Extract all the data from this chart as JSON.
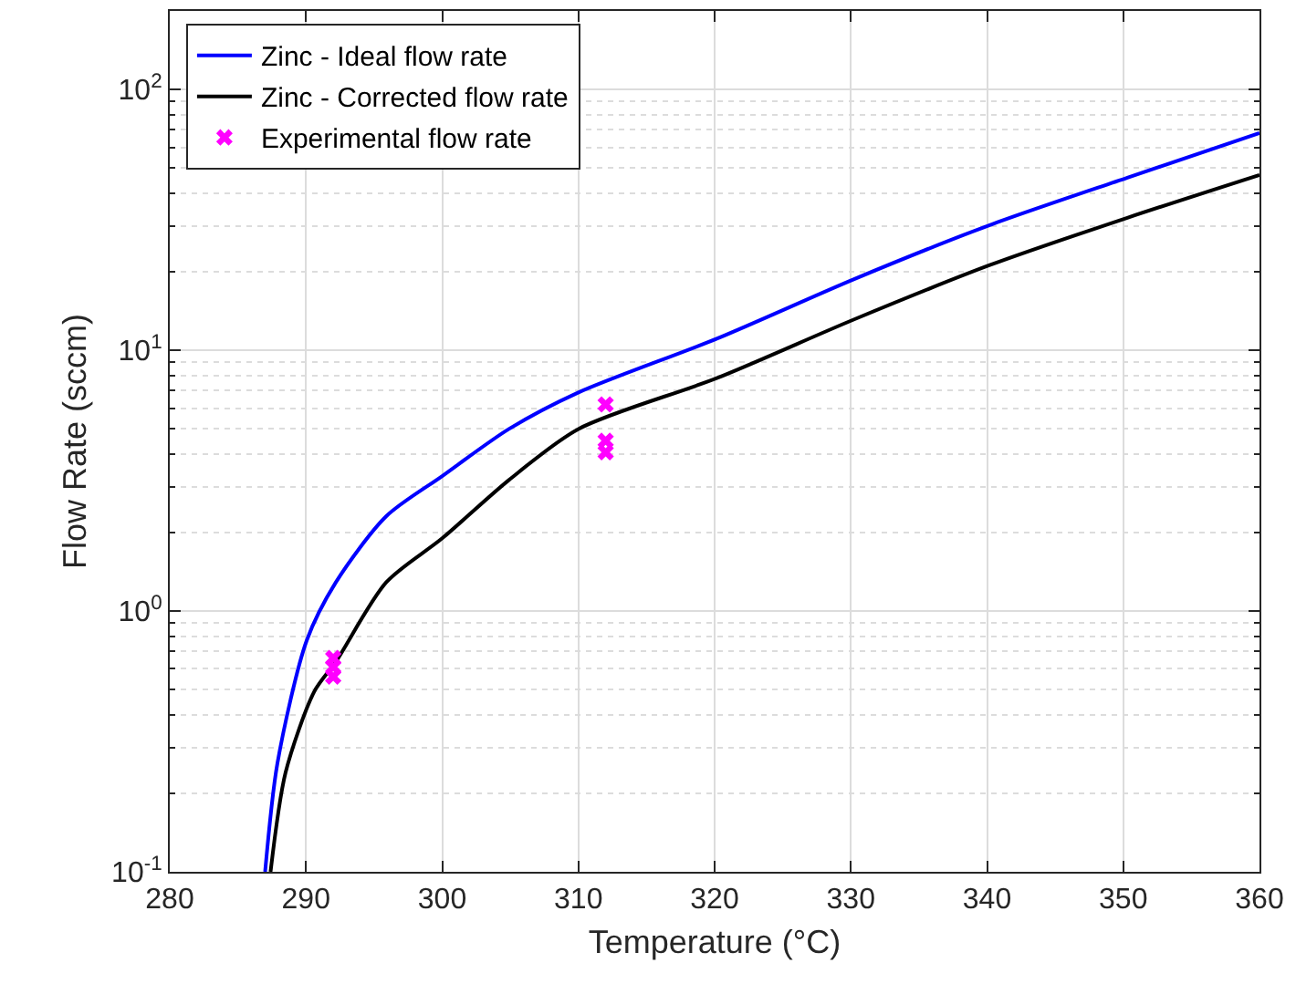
{
  "chart_data": {
    "type": "line",
    "xlabel": "Temperature (°C)",
    "ylabel": "Flow Rate (sccm)",
    "log": "y",
    "grid": true,
    "legend": "top left",
    "xlim": [
      280,
      360
    ],
    "xticks": [
      280,
      290,
      300,
      310,
      320,
      330,
      340,
      350,
      360
    ],
    "ylim": [
      0.1,
      200
    ],
    "yticks": [
      {
        "value": 0.1,
        "label": "10$^{-1}$"
      },
      {
        "value": 1,
        "label": "10$^{0}$"
      },
      {
        "value": 10,
        "label": "10$^{1}$"
      },
      {
        "value": 100,
        "label": "10$^{2}$"
      }
    ],
    "series": [
      {
        "name": "Zinc - Ideal flow rate",
        "color": "#0000ff",
        "line_style": "solid",
        "marker": "none",
        "x": [
          287.0,
          287.9,
          290.05,
          292.2,
          295.9,
          300,
          304.9,
          310,
          320.2,
          330.2,
          340.2,
          350.3,
          360
        ],
        "values": [
          0.1,
          0.26,
          0.77,
          1.29,
          2.31,
          3.29,
          4.99,
          6.89,
          11.1,
          18.7,
          30.2,
          45.9,
          68
        ]
      },
      {
        "name": "Zinc - Corrected flow rate",
        "color": "#000000",
        "line_style": "solid",
        "marker": "none",
        "x": [
          287.4,
          288.5,
          290.6,
          292.2,
          295.9,
          300,
          304.9,
          310,
          320.2,
          330.2,
          340.2,
          350.3,
          360
        ],
        "values": [
          0.1,
          0.24,
          0.49,
          0.64,
          1.29,
          1.9,
          3.18,
          4.99,
          7.83,
          13.1,
          21.2,
          32.2,
          47
        ]
      },
      {
        "name": "Experimental flow rate",
        "type": "scatter",
        "color": "#ff00ff",
        "marker": "cross",
        "x": [
          292,
          292,
          292,
          312,
          312,
          312
        ],
        "values": [
          0.66,
          0.61,
          0.56,
          6.2,
          4.5,
          4.06
        ]
      }
    ]
  }
}
